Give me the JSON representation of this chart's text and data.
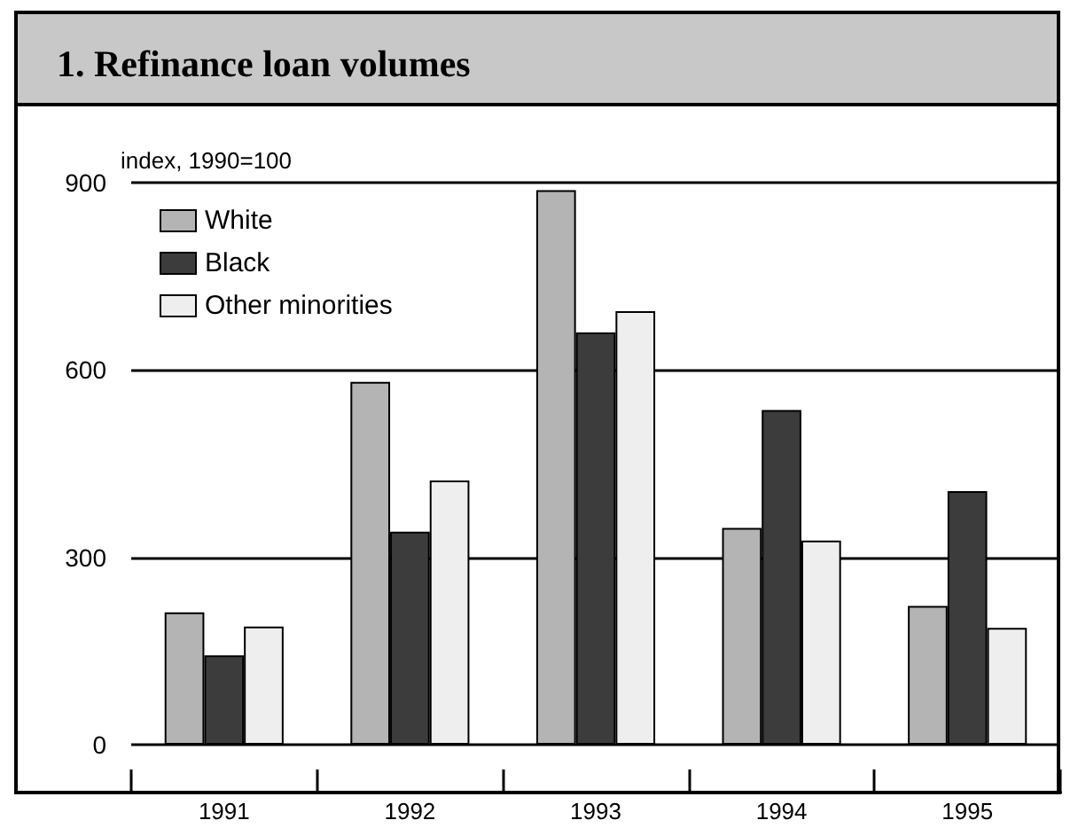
{
  "chart_data": {
    "type": "bar",
    "title": "1. Refinance loan volumes",
    "ylabel": "index, 1990=100",
    "categories": [
      "1991",
      "1992",
      "1993",
      "1994",
      "1995"
    ],
    "series": [
      {
        "name": "White",
        "color": "#b4b4b4",
        "values": [
          212,
          581,
          888,
          347,
          222
        ]
      },
      {
        "name": "Black",
        "color": "#3c3c3c",
        "values": [
          143,
          341,
          660,
          536,
          406
        ]
      },
      {
        "name": "Other minorities",
        "color": "#eeeeee",
        "values": [
          189,
          423,
          694,
          327,
          187
        ]
      }
    ],
    "ylim": [
      0,
      900
    ],
    "yticks": [
      0,
      300,
      600,
      900
    ],
    "grid": "y",
    "legend": "top left"
  }
}
